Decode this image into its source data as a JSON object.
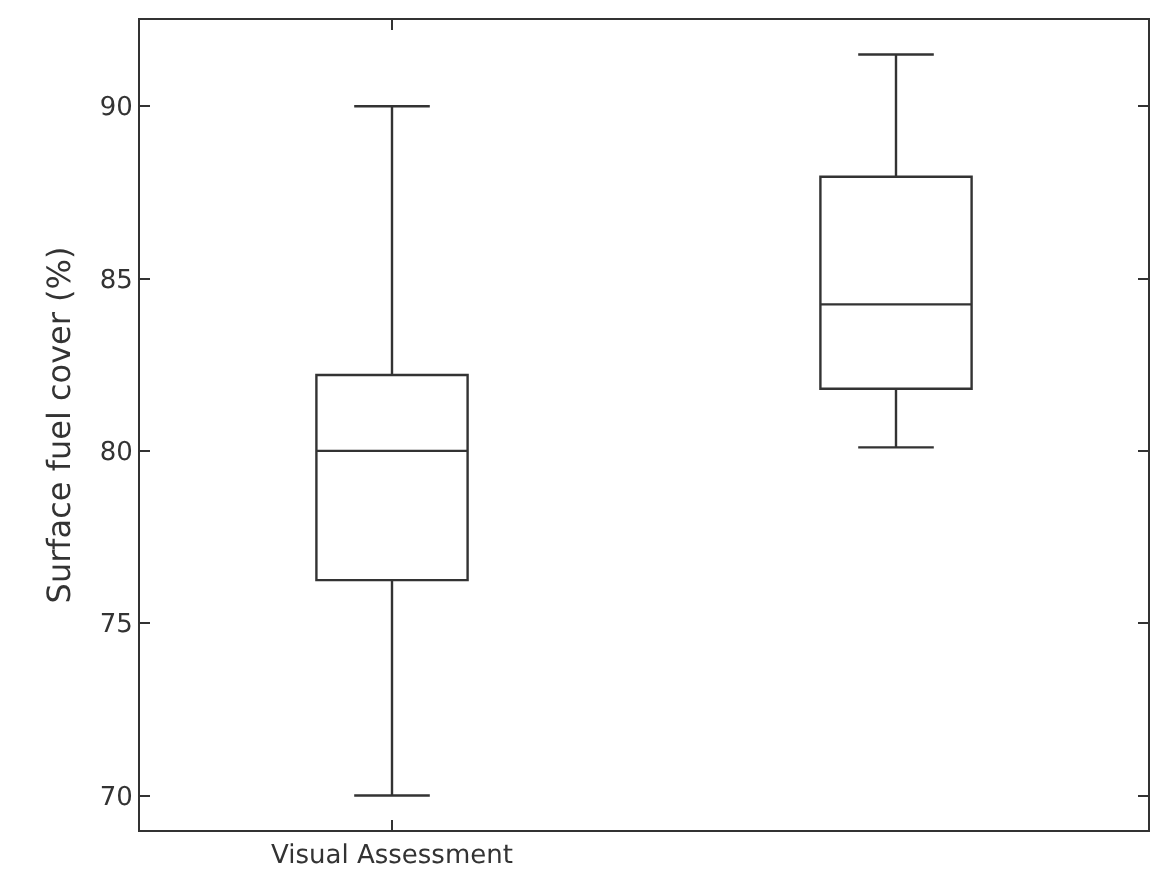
{
  "chart_data": {
    "type": "box",
    "ylabel": "Surface fuel cover (%)",
    "categories": [
      "Visual Assessment",
      null
    ],
    "boxes": [
      {
        "low": 70,
        "q1": 76.25,
        "median": 80,
        "q3": 82.2,
        "high": 90
      },
      {
        "low": 80.1,
        "q1": 81.8,
        "median": 84.25,
        "q3": 87.95,
        "high": 91.5
      }
    ],
    "color": "#333333",
    "ylim": [
      69,
      92.5
    ],
    "yticks": [
      70,
      75,
      80,
      85,
      90
    ]
  }
}
